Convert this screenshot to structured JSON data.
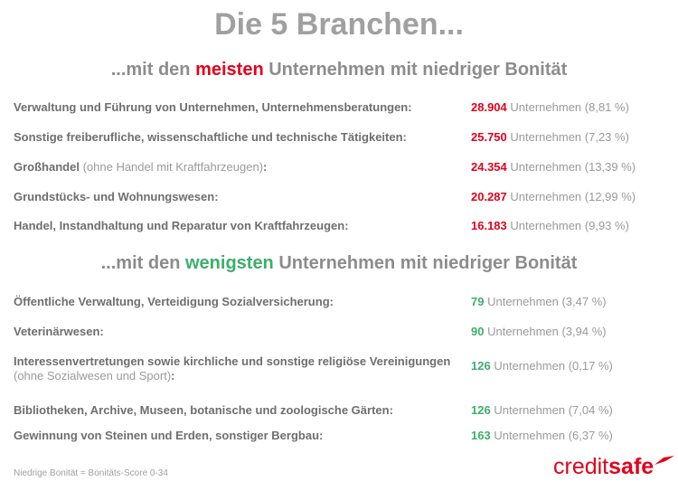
{
  "title": "Die 5 Branchen...",
  "sections": [
    {
      "heading": {
        "before": "...mit den",
        "highlight": "meisten",
        "after": "Unternehmen mit niedriger Bonität"
      },
      "rows": [
        {
          "label": "Verwaltung und Führung von Unternehmen, Unternehmensberatungen:",
          "count": "28.904",
          "detail": "Unternehmen (8,81 %)"
        },
        {
          "label": "Sonstige freiberufliche, wissenschaftliche und technische Tätigkeiten:",
          "count": "25.750",
          "detail": "Unternehmen (7,23 %)"
        },
        {
          "label": "Großhandel",
          "note": "(ohne Handel mit Kraftfahrzeugen)",
          "suffix": ":",
          "count": "24.354",
          "detail": "Unternehmen (13,39 %)"
        },
        {
          "label": "Grundstücks- und Wohnungswesen:",
          "count": "20.287",
          "detail": "Unternehmen (12,99 %)"
        },
        {
          "label": "Handel, Instandhaltung und Reparatur von Kraftfahrzeugen:",
          "count": "16.183",
          "detail": "Unternehmen (9,93 %)"
        }
      ]
    },
    {
      "heading": {
        "before": "...mit den",
        "highlight": "wenigsten",
        "after": "Unternehmen mit niedriger Bonität"
      },
      "rows": [
        {
          "label": "Öffentliche Verwaltung, Verteidigung Sozialversicherung:",
          "count": "79",
          "detail": "Unternehmen (3,47 %)"
        },
        {
          "label": "Veterinärwesen:",
          "count": "90",
          "detail": "Unternehmen (3,94 %)"
        },
        {
          "label": "Interessenvertretungen sowie kirchliche und sonstige religiöse Vereinigungen",
          "note": "(ohne Sozialwesen und Sport)",
          "suffix": ":",
          "count": "126",
          "detail": "Unternehmen (0,17 %)"
        },
        {
          "label": "Bibliotheken, Archive, Museen, botanische und zoologische Gärten:",
          "count": "126",
          "detail": "Unternehmen (7,04 %)"
        },
        {
          "label": "Gewinnung von Steinen und Erden, sonstiger Bergbau:",
          "count": "163",
          "detail": "Unternehmen (6,37 %)"
        }
      ]
    }
  ],
  "footnote": "Niedrige Bonität = Bonitäts-Score 0-34",
  "logo": {
    "part1": "credit",
    "part2": "safe"
  }
}
